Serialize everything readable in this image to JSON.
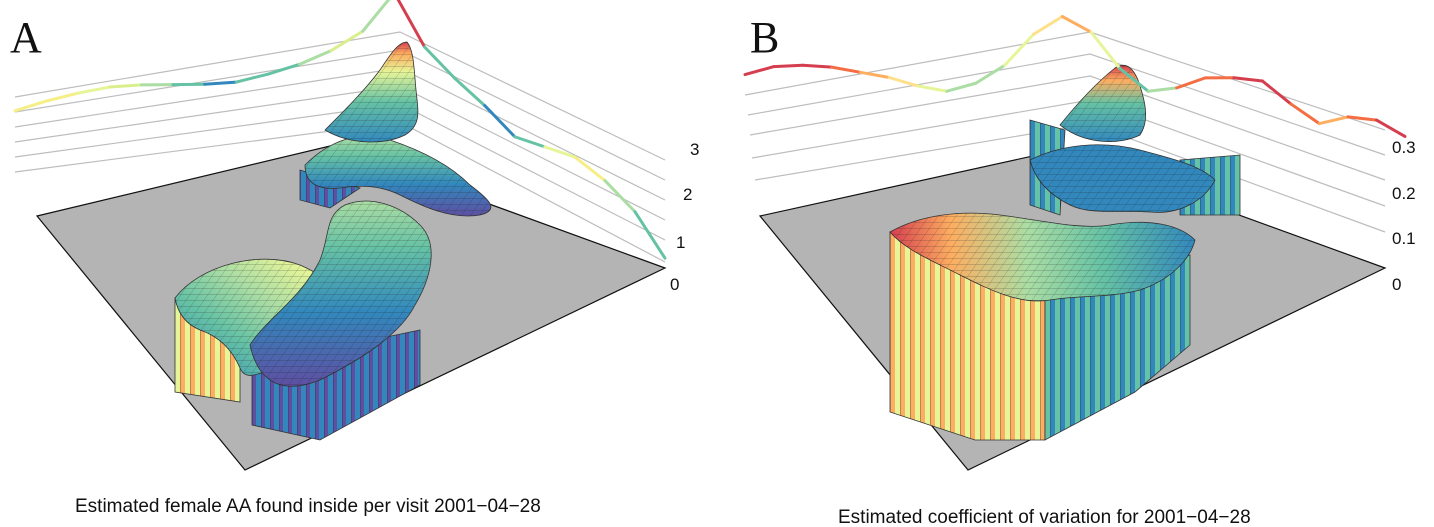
{
  "chart_data": [
    {
      "type": "surface3d",
      "panel_label": "A",
      "title": "Estimated female AA found inside per visit 2001−04−28",
      "z_ticks": [
        "0",
        "1",
        "2",
        "3"
      ],
      "zlim": [
        0,
        3.4
      ],
      "profile_curve": {
        "description_values": [
          1.6,
          1.75,
          1.85,
          1.9,
          1.85,
          1.75,
          1.65,
          1.6,
          1.7,
          1.85,
          2.1,
          2.5,
          3.4,
          2.3,
          1.9,
          1.6,
          1.2,
          1.35,
          1.5,
          1.3,
          0.9,
          0.1
        ],
        "colors": [
          "#f6ee87",
          "#f6ee87",
          "#e6f598",
          "#d9ef8b",
          "#abdda4",
          "#66c2a5",
          "#3288bd",
          "#66c2a5",
          "#66c2a5",
          "#abdda4",
          "#d9ef8b",
          "#abdda4",
          "#d53e4f",
          "#66c2a5",
          "#66c2a5",
          "#3288bd",
          "#66c2a5",
          "#e6f598",
          "#f6ee87",
          "#abdda4",
          "#66c2a5",
          "#3288bd"
        ]
      },
      "colormap": [
        "#5e4fa2",
        "#3288bd",
        "#66c2a5",
        "#abdda4",
        "#e6f598",
        "#fee08b",
        "#fdae61",
        "#f46d43",
        "#d53e4f"
      ]
    },
    {
      "type": "surface3d",
      "panel_label": "B",
      "title": "Estimated coefficient of variation for 2001−04−28",
      "z_ticks": [
        "0",
        "0.1",
        "0.2",
        "0.3"
      ],
      "zlim": [
        0,
        0.34
      ],
      "profile_curve": {
        "description_values": [
          0.32,
          0.33,
          0.32,
          0.3,
          0.27,
          0.24,
          0.2,
          0.17,
          0.18,
          0.22,
          0.3,
          0.34,
          0.28,
          0.2,
          0.16,
          0.2,
          0.26,
          0.29,
          0.31,
          0.27,
          0.24,
          0.29,
          0.31,
          0.29
        ],
        "colors": [
          "#d53e4f",
          "#d53e4f",
          "#d53e4f",
          "#f46d43",
          "#fdae61",
          "#fee08b",
          "#e6f598",
          "#abdda4",
          "#abdda4",
          "#e6f598",
          "#fee08b",
          "#fdae61",
          "#e6f598",
          "#66c2a5",
          "#abdda4",
          "#f46d43",
          "#f46d43",
          "#d53e4f",
          "#d53e4f",
          "#f46d43",
          "#fdae61",
          "#f46d43",
          "#d53e4f",
          "#d53e4f"
        ]
      },
      "colormap": [
        "#3288bd",
        "#66c2a5",
        "#abdda4",
        "#e6f598",
        "#fee08b",
        "#fdae61",
        "#f46d43",
        "#d53e4f"
      ]
    }
  ]
}
